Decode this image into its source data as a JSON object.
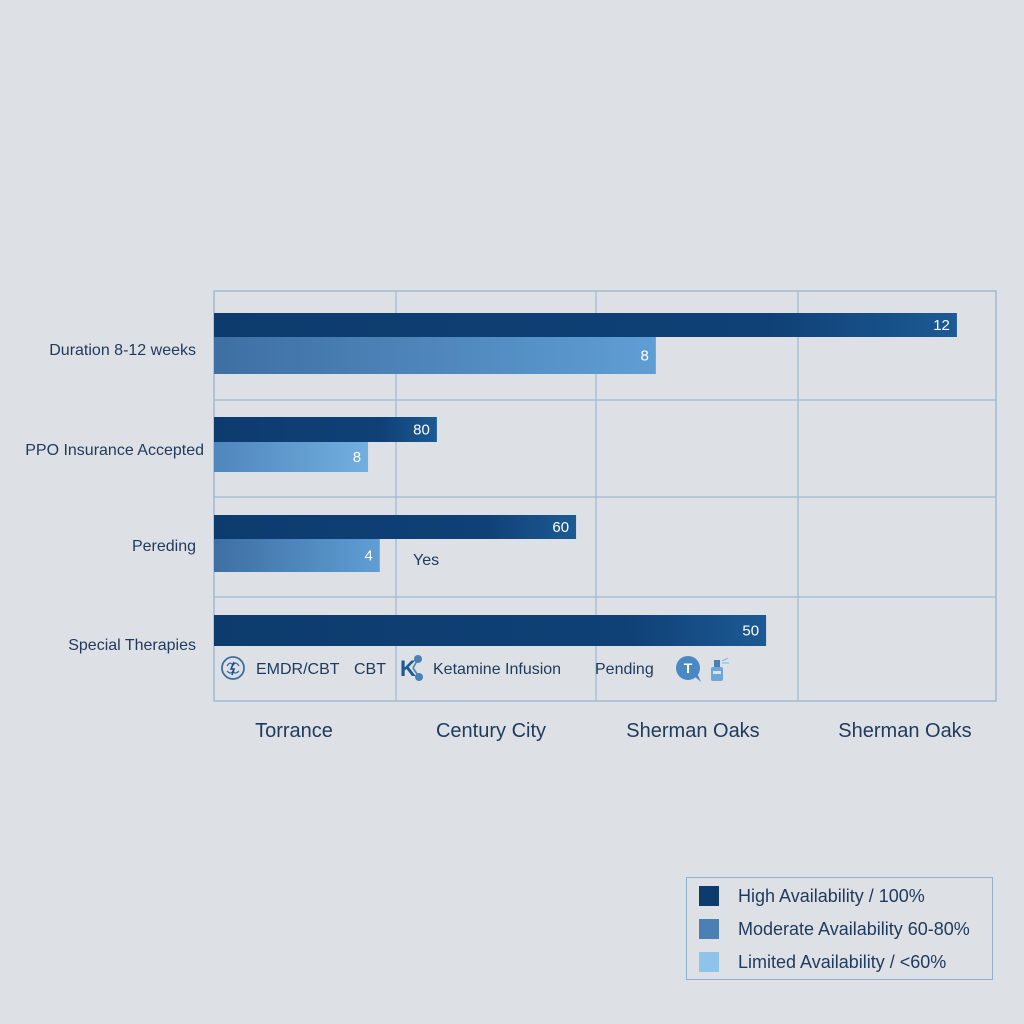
{
  "chart_data": {
    "type": "bar",
    "orientation": "horizontal",
    "title": "",
    "xlabel": "",
    "ylabel": "",
    "grid": true,
    "columns": [
      "Torrance",
      "Century City",
      "Sherman Oaks",
      "Sherman Oaks"
    ],
    "categories": [
      "Duration 8-12 weeks",
      "PPO Insurance Accepted",
      "Pereding",
      "Special Therapies"
    ],
    "rows": [
      {
        "category": "Duration 8-12 weeks",
        "bars": [
          {
            "value": 12,
            "label": "12",
            "level": "high",
            "extent": 0.95
          },
          {
            "value": 8,
            "label": "8",
            "level": "moderate",
            "extent": 0.565
          }
        ]
      },
      {
        "category": "PPO Insurance Accepted",
        "bars": [
          {
            "value": 80,
            "label": "80",
            "level": "high",
            "extent": 0.285
          },
          {
            "value": 8,
            "label": "8",
            "level": "limited",
            "extent": 0.197
          }
        ]
      },
      {
        "category": "Pereding",
        "bars": [
          {
            "value": 60,
            "label": "60",
            "level": "high",
            "extent": 0.463
          },
          {
            "value": 4,
            "label": "4",
            "level": "moderate",
            "extent": 0.212
          }
        ]
      },
      {
        "category": "Special Therapies",
        "bars": [
          {
            "value": 50,
            "label": "50",
            "level": "high",
            "extent": 0.706
          }
        ]
      }
    ],
    "annotations": [
      {
        "row": 2,
        "text": "Yes"
      }
    ],
    "therapy_items": [
      {
        "icon": "brain-icon",
        "text": "EMDR/CBT"
      },
      {
        "icon": "",
        "text": "CBT"
      },
      {
        "icon": "ketamine-molecule-icon",
        "text": "Ketamine Infusion"
      },
      {
        "icon": "",
        "text": "Pending"
      },
      {
        "icon": "chat-bubble-icon",
        "text": "T"
      },
      {
        "icon": "spray-bottle-icon",
        "text": ""
      }
    ],
    "legend": {
      "placement": "bottom-right",
      "items": [
        {
          "label": "High Availability / 100%",
          "color": "#0d3b6e"
        },
        {
          "label": "Moderate Availability 60-80%",
          "color": "#4a80b4"
        },
        {
          "label": "Limited Availability / <60%",
          "color": "#8ec3ea"
        }
      ]
    },
    "colors": {
      "high": "#0d3b6e",
      "moderate_start": "#3e6fa3",
      "moderate_end": "#5f9ed4",
      "limited_start": "#4f86bd",
      "limited_end": "#72afdf",
      "grid": "#9db9d3",
      "text": "#1e3a5c"
    }
  }
}
